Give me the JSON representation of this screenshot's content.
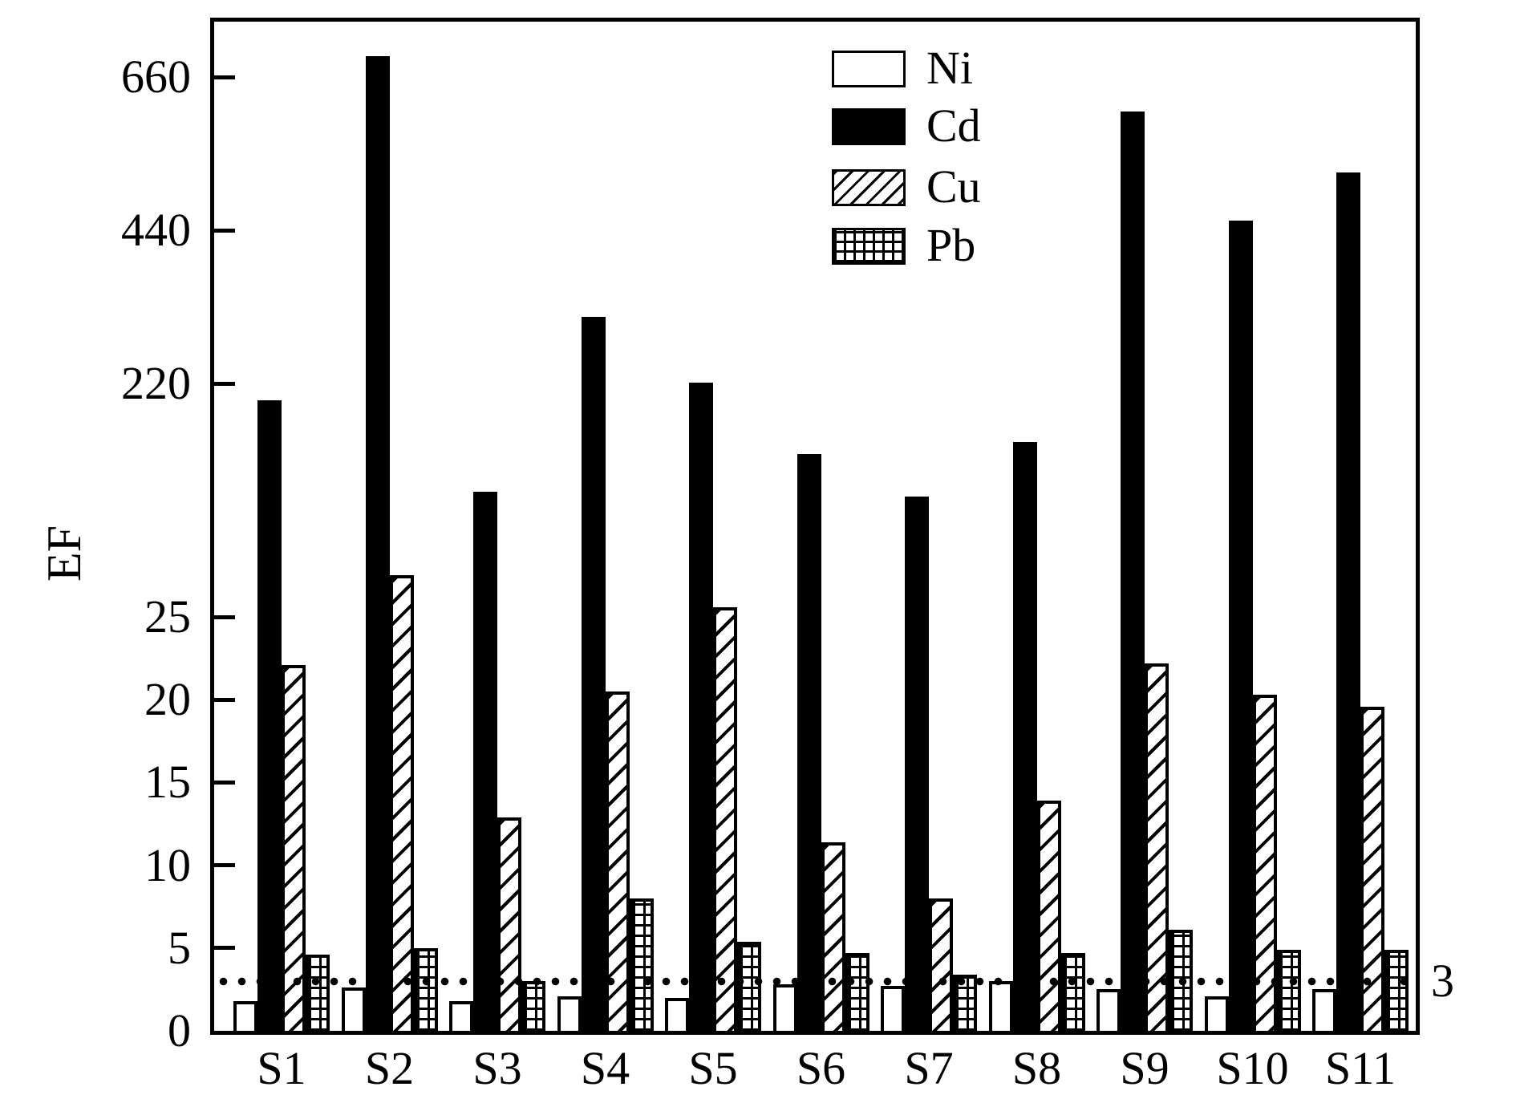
{
  "chart_data": {
    "type": "bar",
    "title": "",
    "xlabel": "",
    "ylabel": "EF",
    "categories": [
      "S1",
      "S2",
      "S3",
      "S4",
      "S5",
      "S6",
      "S7",
      "S8",
      "S9",
      "S10",
      "S11"
    ],
    "series": [
      {
        "name": "Ni",
        "pattern": "white",
        "values": [
          1.8,
          2.6,
          1.8,
          2.1,
          2.0,
          2.8,
          2.7,
          3.0,
          2.5,
          2.1,
          2.5
        ]
      },
      {
        "name": "Cd",
        "pattern": "solid-black",
        "values": [
          206,
          690,
          130,
          316,
          222,
          161,
          126,
          171,
          611,
          454,
          524
        ]
      },
      {
        "name": "Cu",
        "pattern": "diagonal-hatch",
        "values": [
          22.1,
          60,
          12.9,
          20.5,
          33,
          11.4,
          8.0,
          13.9,
          22.2,
          20.3,
          19.6
        ]
      },
      {
        "name": "Pb",
        "pattern": "grid-hatch",
        "values": [
          4.6,
          5.0,
          3.0,
          8.0,
          5.4,
          4.7,
          3.4,
          4.7,
          6.1,
          4.9,
          4.9
        ]
      }
    ],
    "y_ticks": [
      0,
      5,
      10,
      15,
      20,
      25,
      220,
      440,
      660
    ],
    "y_axis_segmented_anchors": [
      {
        "value": 0,
        "frac": 0
      },
      {
        "value": 25,
        "frac": 0.41009
      },
      {
        "value": 220,
        "frac": 0.64117
      },
      {
        "value": 660,
        "frac": 0.94479
      }
    ],
    "reference_line": {
      "value": 3,
      "label": "3",
      "style": "dotted"
    },
    "legend_position": "top-right-inside",
    "grid": false,
    "colors": {
      "foreground": "#000000",
      "background": "#ffffff"
    }
  }
}
